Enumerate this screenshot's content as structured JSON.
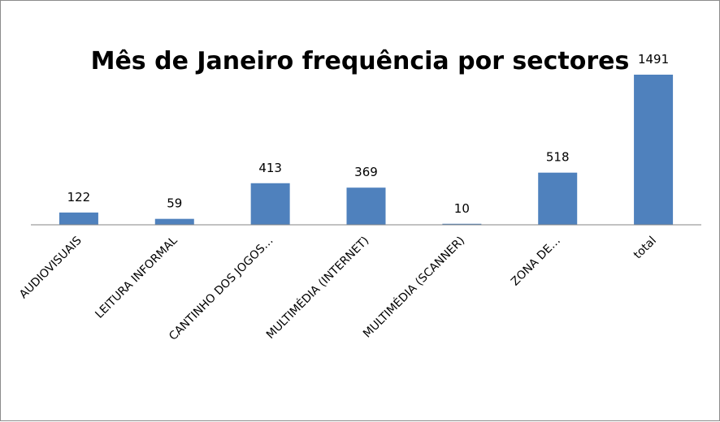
{
  "chart_data": {
    "type": "bar",
    "title": "Mês de Janeiro frequência por sectores",
    "categories": [
      "AUDIOVISUAIS",
      "LEITURA INFORMAL",
      "CANTINHO DOS JOGOS…",
      "MULTIMÉDIA (INTERNET)",
      "MULTIMÉDIA (SCANNER)",
      "ZONA DE…",
      "total"
    ],
    "values": [
      122,
      59,
      413,
      369,
      10,
      518,
      1491
    ],
    "data_labels": [
      "122",
      "59",
      "413",
      "369",
      "10",
      "518",
      "1491"
    ],
    "xlabel": "",
    "ylabel": "",
    "ylim": [
      0,
      1491
    ],
    "grid": false,
    "legend": "none",
    "bar_color": "#4f81bd",
    "axis_color": "#868686"
  }
}
